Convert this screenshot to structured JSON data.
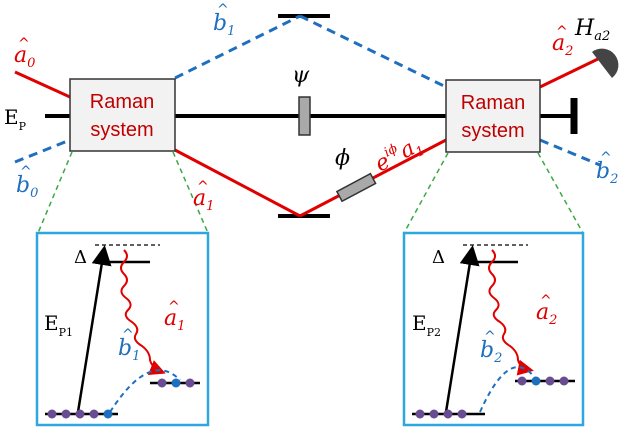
{
  "diagram": {
    "box_labels": [
      "Raman",
      "system"
    ],
    "pump_label": "E",
    "pump_sub": "P",
    "phase_psi": "ψ",
    "phase_phi": "ϕ",
    "field_b1_top": "b",
    "field_b1_top_sub": "1",
    "field_b0": "b",
    "field_b0_sub": "0",
    "field_a0": "a",
    "field_a0_sub": "0",
    "field_a1_lower": "a",
    "field_a1_lower_sub": "1",
    "field_a1_phase_prefix": "e",
    "field_a1_phase_exp": "iϕ",
    "field_a1_phase_op": "a",
    "field_a1_phase_sub": "1",
    "field_a2": "a",
    "field_a2_sub": "2",
    "field_b2": "b",
    "field_b2_sub": "2",
    "detector_label": "H",
    "detector_sub": "a2",
    "inset_left": {
      "delta": "Δ",
      "pump": "E",
      "pump_sub": "P1",
      "stokes": "a",
      "stokes_sub": "1",
      "spin": "b",
      "spin_sub": "1"
    },
    "inset_right": {
      "delta": "Δ",
      "pump": "E",
      "pump_sub": "P2",
      "stokes": "a",
      "stokes_sub": "2",
      "spin": "b",
      "spin_sub": "2"
    },
    "colors": {
      "red": "#e00000",
      "blue": "#1f6fbf",
      "box_fill": "#f2f2f2",
      "inset_border": "#2ea7e0",
      "green_dash": "#3aa845",
      "atom": "#6a4c93"
    }
  }
}
